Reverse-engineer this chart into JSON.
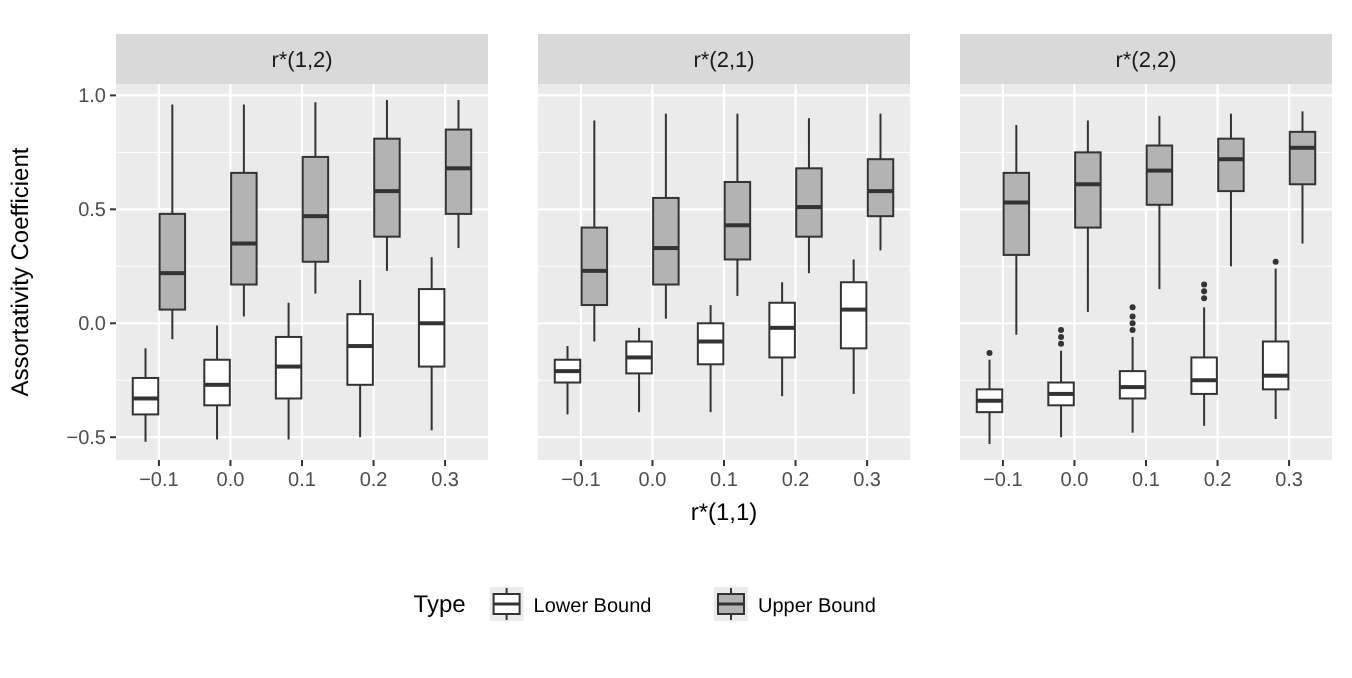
{
  "chart_data": [
    {
      "type": "box",
      "title": "r*(1,2)",
      "ylabel": "Assortativity Coefficient",
      "categories": [
        "−0.1",
        "0.0",
        "0.1",
        "0.2",
        "0.3"
      ],
      "ylim": [
        -0.6,
        1.05
      ],
      "yticks": [
        {
          "value": -0.5,
          "label": "−0.5"
        },
        {
          "value": 0,
          "label": "0.0"
        },
        {
          "value": 0.5,
          "label": "0.5"
        },
        {
          "value": 1,
          "label": "1.0"
        }
      ],
      "grid": true,
      "series": [
        {
          "color": "#ffffff",
          "boxes": [
            {
              "low": -0.52,
              "q1": -0.4,
              "median": -0.33,
              "q3": -0.24,
              "high": -0.11
            },
            {
              "low": -0.51,
              "q1": -0.36,
              "median": -0.27,
              "q3": -0.16,
              "high": -0.01
            },
            {
              "low": -0.51,
              "q1": -0.33,
              "median": -0.19,
              "q3": -0.06,
              "high": 0.09
            },
            {
              "low": -0.5,
              "q1": -0.27,
              "median": -0.1,
              "q3": 0.04,
              "high": 0.19
            },
            {
              "low": -0.47,
              "q1": -0.19,
              "median": 0,
              "q3": 0.15,
              "high": 0.29
            }
          ]
        },
        {
          "color": "#b3b3b3",
          "boxes": [
            {
              "low": -0.07,
              "q1": 0.06,
              "median": 0.22,
              "q3": 0.48,
              "high": 0.96
            },
            {
              "low": 0.03,
              "q1": 0.17,
              "median": 0.35,
              "q3": 0.66,
              "high": 0.96
            },
            {
              "low": 0.13,
              "q1": 0.27,
              "median": 0.47,
              "q3": 0.73,
              "high": 0.97
            },
            {
              "low": 0.23,
              "q1": 0.38,
              "median": 0.58,
              "q3": 0.81,
              "high": 0.98
            },
            {
              "low": 0.33,
              "q1": 0.48,
              "median": 0.68,
              "q3": 0.85,
              "high": 0.98
            }
          ]
        }
      ]
    },
    {
      "type": "box",
      "title": "r*(2,1)",
      "xlabel": "r*(1,1)",
      "categories": [
        "−0.1",
        "0.0",
        "0.1",
        "0.2",
        "0.3"
      ],
      "ylim": [
        -0.6,
        1.05
      ],
      "yticks": [
        -0.5,
        0,
        0.5,
        1
      ],
      "grid": true,
      "tick_labels": "x",
      "legend": "bottom",
      "legend_title": "Type",
      "series": [
        {
          "name": "Lower Bound",
          "color": "#ffffff",
          "boxes": [
            {
              "low": -0.4,
              "q1": -0.26,
              "median": -0.21,
              "q3": -0.16,
              "high": -0.1
            },
            {
              "low": -0.39,
              "q1": -0.22,
              "median": -0.15,
              "q3": -0.08,
              "high": -0.02
            },
            {
              "low": -0.39,
              "q1": -0.18,
              "median": -0.08,
              "q3": 0,
              "high": 0.08
            },
            {
              "low": -0.32,
              "q1": -0.15,
              "median": -0.02,
              "q3": 0.09,
              "high": 0.18
            },
            {
              "low": -0.31,
              "q1": -0.11,
              "median": 0.06,
              "q3": 0.18,
              "high": 0.28
            }
          ]
        },
        {
          "name": "Upper Bound",
          "color": "#b3b3b3",
          "boxes": [
            {
              "low": -0.08,
              "q1": 0.08,
              "median": 0.23,
              "q3": 0.42,
              "high": 0.89
            },
            {
              "low": 0.02,
              "q1": 0.17,
              "median": 0.33,
              "q3": 0.55,
              "high": 0.92
            },
            {
              "low": 0.12,
              "q1": 0.28,
              "median": 0.43,
              "q3": 0.62,
              "high": 0.92
            },
            {
              "low": 0.22,
              "q1": 0.38,
              "median": 0.51,
              "q3": 0.68,
              "high": 0.9
            },
            {
              "low": 0.32,
              "q1": 0.47,
              "median": 0.58,
              "q3": 0.72,
              "high": 0.92
            }
          ]
        }
      ]
    },
    {
      "type": "box",
      "title": "r*(2,2)",
      "categories": [
        "−0.1",
        "0.0",
        "0.1",
        "0.2",
        "0.3"
      ],
      "ylim": [
        -0.6,
        1.05
      ],
      "yticks": [
        -0.5,
        0,
        0.5,
        1
      ],
      "grid": true,
      "tick_labels": "x",
      "series": [
        {
          "color": "#ffffff",
          "boxes": [
            {
              "low": -0.53,
              "q1": -0.39,
              "median": -0.34,
              "q3": -0.29,
              "high": -0.16,
              "outliers": [
                -0.13
              ]
            },
            {
              "low": -0.5,
              "q1": -0.36,
              "median": -0.31,
              "q3": -0.26,
              "high": -0.12,
              "outliers": [
                -0.09,
                -0.06,
                -0.03
              ]
            },
            {
              "low": -0.48,
              "q1": -0.33,
              "median": -0.28,
              "q3": -0.21,
              "high": -0.06,
              "outliers": [
                -0.03,
                0,
                0.03,
                0.07
              ]
            },
            {
              "low": -0.45,
              "q1": -0.31,
              "median": -0.25,
              "q3": -0.15,
              "high": 0.07,
              "outliers": [
                0.11,
                0.14,
                0.17
              ]
            },
            {
              "low": -0.42,
              "q1": -0.29,
              "median": -0.23,
              "q3": -0.08,
              "high": 0.24,
              "outliers": [
                0.27
              ]
            }
          ]
        },
        {
          "color": "#b3b3b3",
          "boxes": [
            {
              "low": -0.05,
              "q1": 0.3,
              "median": 0.53,
              "q3": 0.66,
              "high": 0.87
            },
            {
              "low": 0.05,
              "q1": 0.42,
              "median": 0.61,
              "q3": 0.75,
              "high": 0.89
            },
            {
              "low": 0.15,
              "q1": 0.52,
              "median": 0.67,
              "q3": 0.78,
              "high": 0.91
            },
            {
              "low": 0.25,
              "q1": 0.58,
              "median": 0.72,
              "q3": 0.81,
              "high": 0.92
            },
            {
              "low": 0.35,
              "q1": 0.61,
              "median": 0.77,
              "q3": 0.84,
              "high": 0.93
            }
          ]
        }
      ]
    }
  ]
}
